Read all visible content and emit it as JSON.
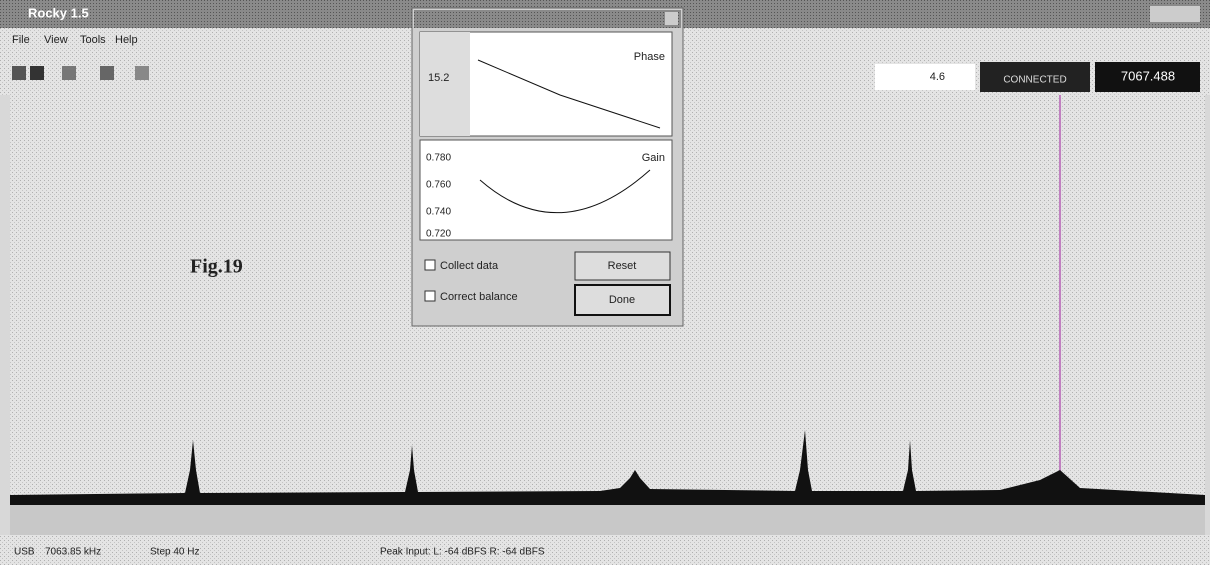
{
  "window": {
    "title": "Rocky 1.5"
  },
  "menu": [
    "File",
    "View",
    "Tools",
    "Help"
  ],
  "toolbar": {
    "level": "4.6",
    "status": "CONNECTED",
    "frequency": "7067.488"
  },
  "figure_label": "Fig.19",
  "dialog": {
    "phase_plot": {
      "label": "Phase",
      "tick": "15.2"
    },
    "gain_plot": {
      "label": "Gain",
      "ticks": [
        "0.780",
        "0.760",
        "0.740",
        "0.720"
      ]
    },
    "checkboxes": [
      "Collect data",
      "Correct balance"
    ],
    "buttons": [
      "Reset",
      "Done"
    ]
  },
  "status_bar": [
    "USB",
    "7063.85 kHz",
    "Step 40 Hz",
    "Peak Input:  L: -64 dBFS   R: -64 dBFS"
  ]
}
